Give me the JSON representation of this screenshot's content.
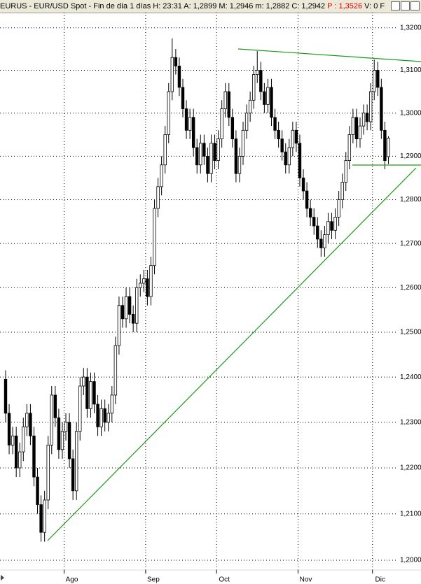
{
  "header": {
    "text": "EURUS - EUR/USD Spot - Fin de día 1 días H: 23:31 A: 1,2899 M: 1,2946 m: 1,2882 C: 1,2942",
    "price_label": "P : 1,3526",
    "rest": "V: 0 F"
  },
  "chart_data": {
    "type": "candlestick",
    "log": true,
    "grid": true,
    "up_color": "#ffffff",
    "down_color": "#000000",
    "ylim": [
      1.1979,
      1.3236
    ],
    "yticks": [
      {
        "value": 1.2,
        "label": "1,2000"
      },
      {
        "value": 1.21,
        "label": "1,2100"
      },
      {
        "value": 1.22,
        "label": "1,2200"
      },
      {
        "value": 1.23,
        "label": "1,2300"
      },
      {
        "value": 1.24,
        "label": "1,2400"
      },
      {
        "value": 1.25,
        "label": "1,2500"
      },
      {
        "value": 1.26,
        "label": "1,2600"
      },
      {
        "value": 1.27,
        "label": "1,2700"
      },
      {
        "value": 1.28,
        "label": "1,2800"
      },
      {
        "value": 1.29,
        "label": "1,2900"
      },
      {
        "value": 1.3,
        "label": "1,3000"
      },
      {
        "value": 1.31,
        "label": "1,3100"
      },
      {
        "value": 1.32,
        "label": "1,3200"
      }
    ],
    "categories": [
      null,
      null,
      null,
      null,
      null,
      null,
      null,
      null,
      null,
      null,
      null,
      null,
      null,
      null,
      null,
      null,
      null,
      "Ago",
      null,
      null,
      null,
      null,
      null,
      null,
      null,
      null,
      null,
      null,
      null,
      null,
      null,
      null,
      null,
      null,
      null,
      null,
      null,
      null,
      null,
      null,
      "Sep",
      null,
      null,
      null,
      null,
      null,
      null,
      null,
      null,
      null,
      null,
      null,
      null,
      null,
      null,
      null,
      null,
      null,
      null,
      null,
      "Oct",
      null,
      null,
      null,
      null,
      null,
      null,
      null,
      null,
      null,
      null,
      null,
      null,
      null,
      null,
      null,
      null,
      null,
      null,
      null,
      null,
      null,
      null,
      "Nov",
      null,
      null,
      null,
      null,
      null,
      null,
      null,
      null,
      null,
      null,
      null,
      null,
      null,
      null,
      null,
      null,
      null,
      null,
      null,
      null,
      "Dic",
      null,
      null,
      null,
      null
    ],
    "open": [
      1.2395,
      1.232,
      1.225,
      1.227,
      1.22,
      1.2235,
      1.229,
      1.232,
      1.227,
      1.218,
      1.212,
      1.206,
      1.213,
      1.225,
      1.236,
      1.231,
      1.224,
      1.228,
      1.23,
      1.222,
      1.215,
      1.228,
      1.238,
      1.24,
      1.233,
      1.239,
      1.234,
      1.229,
      1.233,
      1.23,
      1.232,
      1.236,
      1.247,
      1.256,
      1.253,
      1.258,
      1.254,
      1.252,
      1.26,
      1.261,
      1.262,
      1.258,
      1.265,
      1.278,
      1.283,
      1.288,
      1.295,
      1.305,
      1.313,
      1.311,
      1.306,
      1.301,
      1.296,
      1.299,
      1.292,
      1.288,
      1.293,
      1.29,
      1.286,
      1.293,
      1.289,
      1.294,
      1.301,
      1.305,
      1.299,
      1.294,
      1.286,
      1.29,
      1.296,
      1.3,
      1.303,
      1.309,
      1.31,
      1.305,
      1.302,
      1.306,
      1.299,
      1.296,
      1.294,
      1.291,
      1.288,
      1.292,
      1.296,
      1.293,
      1.285,
      1.282,
      1.278,
      1.276,
      1.274,
      1.271,
      1.269,
      1.272,
      1.275,
      1.273,
      1.276,
      1.28,
      1.284,
      1.289,
      1.295,
      1.299,
      1.294,
      1.297,
      1.3,
      1.298,
      1.305,
      1.31,
      1.306,
      1.296,
      1.2899
    ],
    "high": [
      1.2415,
      1.234,
      1.229,
      1.229,
      1.2255,
      1.231,
      1.234,
      1.234,
      1.229,
      1.22,
      1.214,
      1.215,
      1.227,
      1.238,
      1.238,
      1.233,
      1.23,
      1.232,
      1.232,
      1.224,
      1.23,
      1.24,
      1.242,
      1.242,
      1.241,
      1.241,
      1.236,
      1.235,
      1.235,
      1.234,
      1.238,
      1.249,
      1.258,
      1.258,
      1.26,
      1.26,
      1.256,
      1.262,
      1.263,
      1.264,
      1.264,
      1.267,
      1.28,
      1.285,
      1.29,
      1.297,
      1.307,
      1.3175,
      1.315,
      1.313,
      1.308,
      1.303,
      1.301,
      1.301,
      1.294,
      1.295,
      1.295,
      1.292,
      1.295,
      1.295,
      1.296,
      1.303,
      1.307,
      1.307,
      1.301,
      1.296,
      1.292,
      1.298,
      1.302,
      1.305,
      1.311,
      1.3145,
      1.312,
      1.307,
      1.308,
      1.308,
      1.301,
      1.298,
      1.296,
      1.293,
      1.294,
      1.298,
      1.298,
      1.295,
      1.287,
      1.284,
      1.28,
      1.278,
      1.276,
      1.273,
      1.274,
      1.277,
      1.277,
      1.278,
      1.282,
      1.286,
      1.291,
      1.297,
      1.301,
      1.301,
      1.299,
      1.302,
      1.302,
      1.307,
      1.3125,
      1.312,
      1.308,
      1.298,
      1.2946
    ],
    "low": [
      1.23,
      1.223,
      1.223,
      1.218,
      1.218,
      1.2215,
      1.227,
      1.225,
      1.216,
      1.21,
      1.204,
      1.204,
      1.211,
      1.223,
      1.229,
      1.222,
      1.222,
      1.226,
      1.22,
      1.213,
      1.213,
      1.226,
      1.236,
      1.231,
      1.231,
      1.232,
      1.227,
      1.227,
      1.228,
      1.228,
      1.23,
      1.234,
      1.245,
      1.251,
      1.251,
      1.252,
      1.25,
      1.25,
      1.258,
      1.259,
      1.256,
      1.256,
      1.263,
      1.276,
      1.281,
      1.286,
      1.293,
      1.303,
      1.309,
      1.304,
      1.299,
      1.294,
      1.294,
      1.29,
      1.286,
      1.286,
      1.288,
      1.284,
      1.284,
      1.287,
      1.287,
      1.292,
      1.299,
      1.297,
      1.292,
      1.284,
      1.284,
      1.288,
      1.294,
      1.298,
      1.301,
      1.307,
      1.303,
      1.3,
      1.3,
      1.297,
      1.294,
      1.292,
      1.289,
      1.286,
      1.286,
      1.29,
      1.291,
      1.283,
      1.28,
      1.276,
      1.274,
      1.272,
      1.269,
      1.267,
      1.267,
      1.27,
      1.271,
      1.271,
      1.274,
      1.278,
      1.282,
      1.287,
      1.293,
      1.292,
      1.292,
      1.295,
      1.296,
      1.296,
      1.303,
      1.304,
      1.294,
      1.287,
      1.2882
    ],
    "close": [
      1.232,
      1.225,
      1.227,
      1.22,
      1.2235,
      1.229,
      1.232,
      1.227,
      1.218,
      1.212,
      1.206,
      1.213,
      1.225,
      1.236,
      1.231,
      1.224,
      1.228,
      1.23,
      1.222,
      1.215,
      1.228,
      1.238,
      1.24,
      1.233,
      1.239,
      1.234,
      1.229,
      1.233,
      1.23,
      1.232,
      1.236,
      1.247,
      1.256,
      1.253,
      1.258,
      1.254,
      1.252,
      1.26,
      1.261,
      1.262,
      1.258,
      1.265,
      1.278,
      1.283,
      1.288,
      1.295,
      1.305,
      1.313,
      1.311,
      1.306,
      1.301,
      1.296,
      1.299,
      1.292,
      1.288,
      1.293,
      1.29,
      1.286,
      1.293,
      1.289,
      1.294,
      1.301,
      1.305,
      1.299,
      1.294,
      1.286,
      1.29,
      1.296,
      1.3,
      1.303,
      1.309,
      1.31,
      1.305,
      1.302,
      1.306,
      1.299,
      1.296,
      1.294,
      1.291,
      1.288,
      1.292,
      1.296,
      1.293,
      1.285,
      1.282,
      1.278,
      1.276,
      1.274,
      1.271,
      1.269,
      1.272,
      1.275,
      1.273,
      1.276,
      1.28,
      1.284,
      1.289,
      1.295,
      1.299,
      1.294,
      1.297,
      1.3,
      1.298,
      1.305,
      1.31,
      1.306,
      1.296,
      1.289,
      1.2942
    ]
  }
}
